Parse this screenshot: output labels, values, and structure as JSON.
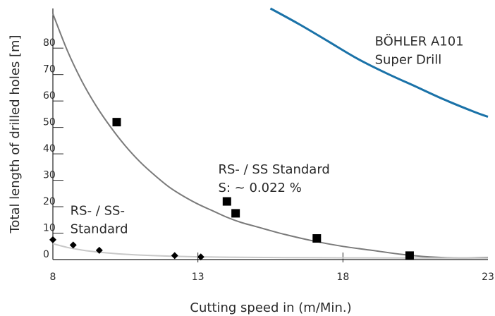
{
  "chart_data": {
    "type": "scatter",
    "xlabel": "Cutting speed in (m/Min.)",
    "ylabel": "Total length of drilled holes [m]",
    "xlim": [
      8,
      23
    ],
    "ylim": [
      0,
      95
    ],
    "x_ticks": [
      8,
      13,
      18,
      23
    ],
    "y_ticks": [
      0,
      10,
      20,
      30,
      40,
      50,
      60,
      70,
      80
    ],
    "grid": false,
    "legend": "none",
    "series": [
      {
        "name": "BÖHLER A101 Super Drill",
        "label_lines": [
          "BÖHLER A101",
          "Super Drill"
        ],
        "label_at": [
          19.1,
          81
        ],
        "mark": "line",
        "color": "#1a72a8",
        "x": [
          15.5,
          16.5,
          17.5,
          18.5,
          19.5,
          20.5,
          21.5,
          22.5,
          23
        ],
        "y": [
          95,
          89,
          82.5,
          76,
          70.5,
          65.5,
          60.5,
          56,
          54
        ]
      },
      {
        "name": "RS- / SS Standard S: ~ 0.022 %",
        "label_lines": [
          "RS- / SS Standard",
          "S: ~ 0.022 %"
        ],
        "label_at": [
          13.7,
          32.5
        ],
        "mark": "square",
        "color": "#000000",
        "x": [
          10.2,
          14,
          14.3,
          17.1,
          20.3
        ],
        "y": [
          52,
          22,
          17.5,
          8,
          1.5
        ]
      },
      {
        "name": "RS- / SS- Standard",
        "label_lines": [
          "RS- / SS-",
          "Standard"
        ],
        "label_at": [
          8.6,
          17
        ],
        "mark": "diamond",
        "color": "#000000",
        "x": [
          8,
          8.7,
          9.6,
          12.2,
          13.1
        ],
        "y": [
          7.5,
          5.5,
          3.5,
          1.5,
          1
        ]
      }
    ],
    "trendlines": [
      {
        "series": "RS- / SS Standard S: ~ 0.022 %",
        "color": "#7a7a7a",
        "x": [
          8,
          8.5,
          9,
          9.5,
          10,
          10.5,
          11,
          11.5,
          12,
          12.5,
          13,
          13.5,
          14,
          14.5,
          15,
          16,
          17,
          18,
          19,
          20,
          21,
          22,
          23
        ],
        "y": [
          93,
          79,
          67.5,
          58,
          50,
          43,
          37,
          32,
          27.5,
          24,
          21,
          18.5,
          16,
          14,
          12.5,
          9.5,
          7,
          5,
          3.5,
          2,
          1,
          0.6,
          0.8
        ]
      },
      {
        "series": "RS- / SS- Standard",
        "color": "#c8c8c8",
        "x": [
          8,
          8.5,
          9,
          9.5,
          10,
          10.5,
          11,
          12,
          13,
          14,
          16,
          18,
          20,
          23
        ],
        "y": [
          6,
          4.6,
          3.6,
          2.9,
          2.4,
          2.0,
          1.7,
          1.3,
          1.05,
          0.9,
          0.75,
          0.65,
          0.6,
          0.55
        ]
      }
    ]
  }
}
